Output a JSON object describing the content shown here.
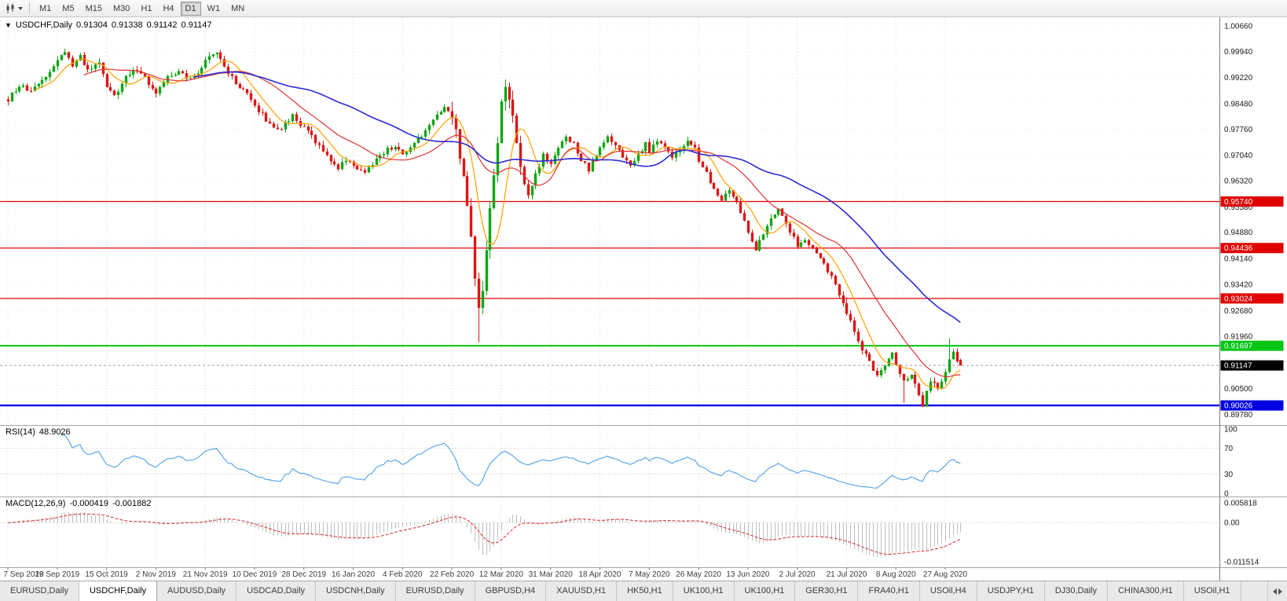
{
  "toolbar": {
    "timeframes": [
      "M1",
      "M5",
      "M15",
      "M30",
      "H1",
      "H4",
      "D1",
      "W1",
      "MN"
    ],
    "active_timeframe": "D1"
  },
  "chart_header": {
    "marker": "▼",
    "symbol": "USDCHF,Daily",
    "open": "0.91304",
    "high": "0.91338",
    "low": "0.91142",
    "close": "0.91147"
  },
  "indicators": {
    "rsi_label": "RSI(14)",
    "rsi_value": "48.9026",
    "rsi_levels": [
      {
        "text": "100",
        "value": 100
      },
      {
        "text": "70",
        "value": 70
      },
      {
        "text": "30",
        "value": 30
      },
      {
        "text": "0",
        "value": 0
      }
    ],
    "macd_label": "MACD(12,26,9)",
    "macd_value1": "-0.000419",
    "macd_value2": "-0.001882",
    "macd_axis": [
      {
        "text": "0.005818",
        "value": 0.005818
      },
      {
        "text": "0.00",
        "value": 0
      },
      {
        "text": "-0.011514",
        "value": -0.011514
      }
    ]
  },
  "price_axis": {
    "labels": [
      {
        "text": "1.00660",
        "price": 1.0066
      },
      {
        "text": "0.99940",
        "price": 0.9994
      },
      {
        "text": "0.99220",
        "price": 0.9922
      },
      {
        "text": "0.98480",
        "price": 0.9848
      },
      {
        "text": "0.97760",
        "price": 0.9776
      },
      {
        "text": "0.97040",
        "price": 0.9704
      },
      {
        "text": "0.96320",
        "price": 0.9632
      },
      {
        "text": "0.95580",
        "price": 0.9558
      },
      {
        "text": "0.94880",
        "price": 0.9488
      },
      {
        "text": "0.94140",
        "price": 0.9414
      },
      {
        "text": "0.93420",
        "price": 0.9342
      },
      {
        "text": "0.92680",
        "price": 0.9268
      },
      {
        "text": "0.91960",
        "price": 0.9196
      },
      {
        "text": "0.90500",
        "price": 0.905
      },
      {
        "text": "0.89780",
        "price": 0.8978
      }
    ]
  },
  "hlines": [
    {
      "label": "0.95740",
      "price": 0.9574,
      "color": "#e00000",
      "width": 1.3
    },
    {
      "label": "0.94436",
      "price": 0.94436,
      "color": "#e00000",
      "width": 1.3
    },
    {
      "label": "0.93024",
      "price": 0.93024,
      "color": "#e00000",
      "width": 1.3
    },
    {
      "label": "0.91697",
      "price": 0.91697,
      "color": "#00c613",
      "width": 2
    },
    {
      "label": "0.90026",
      "price": 0.90026,
      "color": "#0000e0",
      "width": 2.4
    }
  ],
  "current_price": {
    "label": "0.91147",
    "value": 0.91147,
    "badge_color": "#000000"
  },
  "x_axis": {
    "labels": [
      "7 Sep 2019",
      "26 Sep 2019",
      "15 Oct 2019",
      "2 Nov 2019",
      "21 Nov 2019",
      "10 Dec 2019",
      "28 Dec 2019",
      "16 Jan 2020",
      "4 Feb 2020",
      "22 Feb 2020",
      "12 Mar 2020",
      "31 Mar 2020",
      "18 Apr 2020",
      "7 May 2020",
      "26 May 2020",
      "13 Jun 2020",
      "2 Jul 2020",
      "21 Jul 2020",
      "8 Aug 2020",
      "27 Aug 2020"
    ],
    "ticks_every": 13
  },
  "chart_data": {
    "type": "candlestick",
    "symbol": "USDCHF",
    "timeframe": "Daily",
    "candle_count": 252,
    "price_scale": {
      "y_top_price": 1.009,
      "y_bottom_price": 0.895
    },
    "close_anchors": [
      [
        0,
        0.986
      ],
      [
        3,
        0.99
      ],
      [
        6,
        0.9878
      ],
      [
        10,
        0.9925
      ],
      [
        13,
        0.9968
      ],
      [
        15,
        0.9995
      ],
      [
        17,
        0.9952
      ],
      [
        19,
        0.998
      ],
      [
        21,
        0.9938
      ],
      [
        24,
        0.9962
      ],
      [
        26,
        0.9898
      ],
      [
        28,
        0.9866
      ],
      [
        31,
        0.9922
      ],
      [
        34,
        0.9946
      ],
      [
        37,
        0.9906
      ],
      [
        39,
        0.9882
      ],
      [
        42,
        0.992
      ],
      [
        45,
        0.9936
      ],
      [
        48,
        0.9914
      ],
      [
        51,
        0.9952
      ],
      [
        53,
        0.9986
      ],
      [
        55,
        0.9996
      ],
      [
        57,
        0.995
      ],
      [
        60,
        0.9906
      ],
      [
        63,
        0.9872
      ],
      [
        65,
        0.9842
      ],
      [
        68,
        0.9804
      ],
      [
        71,
        0.9772
      ],
      [
        73,
        0.9792
      ],
      [
        75,
        0.9812
      ],
      [
        78,
        0.9778
      ],
      [
        81,
        0.9742
      ],
      [
        84,
        0.9704
      ],
      [
        87,
        0.9668
      ],
      [
        89,
        0.9692
      ],
      [
        91,
        0.9672
      ],
      [
        94,
        0.9652
      ],
      [
        96,
        0.9682
      ],
      [
        99,
        0.9712
      ],
      [
        102,
        0.9732
      ],
      [
        104,
        0.9702
      ],
      [
        107,
        0.9736
      ],
      [
        110,
        0.9772
      ],
      [
        113,
        0.9812
      ],
      [
        115,
        0.9842
      ],
      [
        117,
        0.982
      ],
      [
        118,
        0.9762
      ],
      [
        119,
        0.9702
      ],
      [
        120,
        0.9632
      ],
      [
        121,
        0.9562
      ],
      [
        122,
        0.9482
      ],
      [
        123,
        0.9362
      ],
      [
        124,
        0.9262
      ],
      [
        125,
        0.9332
      ],
      [
        126,
        0.9442
      ],
      [
        127,
        0.9562
      ],
      [
        128,
        0.9652
      ],
      [
        129,
        0.9742
      ],
      [
        130,
        0.9852
      ],
      [
        131,
        0.9906
      ],
      [
        132,
        0.9862
      ],
      [
        133,
        0.9802
      ],
      [
        134,
        0.9732
      ],
      [
        135,
        0.9672
      ],
      [
        136,
        0.9622
      ],
      [
        137,
        0.9576
      ],
      [
        138,
        0.9612
      ],
      [
        139,
        0.9652
      ],
      [
        141,
        0.9702
      ],
      [
        143,
        0.9682
      ],
      [
        145,
        0.9722
      ],
      [
        147,
        0.9756
      ],
      [
        149,
        0.9732
      ],
      [
        151,
        0.9692
      ],
      [
        153,
        0.9662
      ],
      [
        155,
        0.9702
      ],
      [
        156,
        0.9722
      ],
      [
        158,
        0.9752
      ],
      [
        160,
        0.9732
      ],
      [
        162,
        0.9702
      ],
      [
        164,
        0.9672
      ],
      [
        166,
        0.9706
      ],
      [
        168,
        0.9736
      ],
      [
        169,
        0.9716
      ],
      [
        171,
        0.9746
      ],
      [
        173,
        0.9722
      ],
      [
        175,
        0.9696
      ],
      [
        177,
        0.9722
      ],
      [
        179,
        0.9746
      ],
      [
        181,
        0.9722
      ],
      [
        182,
        0.9692
      ],
      [
        184,
        0.9652
      ],
      [
        186,
        0.9612
      ],
      [
        188,
        0.9582
      ],
      [
        190,
        0.9612
      ],
      [
        192,
        0.9572
      ],
      [
        194,
        0.9522
      ],
      [
        195,
        0.9482
      ],
      [
        197,
        0.9442
      ],
      [
        199,
        0.9482
      ],
      [
        201,
        0.9532
      ],
      [
        203,
        0.9552
      ],
      [
        205,
        0.9512
      ],
      [
        207,
        0.9472
      ],
      [
        208,
        0.9452
      ],
      [
        210,
        0.9472
      ],
      [
        212,
        0.9442
      ],
      [
        214,
        0.9412
      ],
      [
        216,
        0.9382
      ],
      [
        218,
        0.9342
      ],
      [
        220,
        0.9292
      ],
      [
        221,
        0.9262
      ],
      [
        223,
        0.9212
      ],
      [
        225,
        0.9162
      ],
      [
        227,
        0.9122
      ],
      [
        229,
        0.9082
      ],
      [
        231,
        0.9112
      ],
      [
        233,
        0.9152
      ],
      [
        234,
        0.9122
      ],
      [
        236,
        0.9072
      ],
      [
        238,
        0.9092
      ],
      [
        240,
        0.9032
      ],
      [
        241,
        0.9006
      ],
      [
        242,
        0.9046
      ],
      [
        243,
        0.9076
      ],
      [
        245,
        0.9056
      ],
      [
        247,
        0.9096
      ],
      [
        248,
        0.9136
      ],
      [
        249,
        0.9156
      ],
      [
        250,
        0.913
      ],
      [
        251,
        0.91147
      ]
    ],
    "wick_overrides": {
      "124": {
        "low": 0.918
      },
      "236": {
        "low": 0.901
      },
      "241": {
        "low": 0.8998
      },
      "248": {
        "high": 0.919
      }
    },
    "last_candle": {
      "open": 0.91304,
      "high": 0.91338,
      "low": 0.91142,
      "close": 0.91147
    },
    "moving_averages": [
      {
        "period": 8,
        "color": "#ff9f00",
        "width": 1.2
      },
      {
        "period": 21,
        "color": "#e03232",
        "width": 1.2
      },
      {
        "period": 50,
        "color": "#2b2bd4",
        "width": 1.6
      }
    ],
    "rsi": {
      "period": 14,
      "color": "#4da0e8",
      "current": 48.9026
    },
    "macd": {
      "fast": 12,
      "slow": 26,
      "signal": 9,
      "hist_color": "#bfbfbf",
      "signal_color": "#d42a2a",
      "axis_top": 0.0068,
      "axis_bottom": -0.0125,
      "current_macd": -0.000419,
      "current_signal": -0.001882
    },
    "colors": {
      "bull": "#0fa514",
      "bear": "#dc1616",
      "grid": "#dcdcdc",
      "axis_text": "#1a1a1a",
      "date_text": "#3c3c3c"
    }
  },
  "tabs": {
    "items": [
      "EURUSD,Daily",
      "USDCHF,Daily",
      "AUDUSD,Daily",
      "USDCAD,Daily",
      "USDCNH,Daily",
      "EURUSD,Daily",
      "GBPUSD,H4",
      "XAUUSD,H1",
      "HK50,H1",
      "UK100,H1",
      "UK100,H1",
      "GER30,H1",
      "FRA40,H1",
      "USOil,H4",
      "USDJPY,H1",
      "DJ30,Daily",
      "CHINA300,H1",
      "USOil,H1"
    ],
    "active_index": 1
  }
}
